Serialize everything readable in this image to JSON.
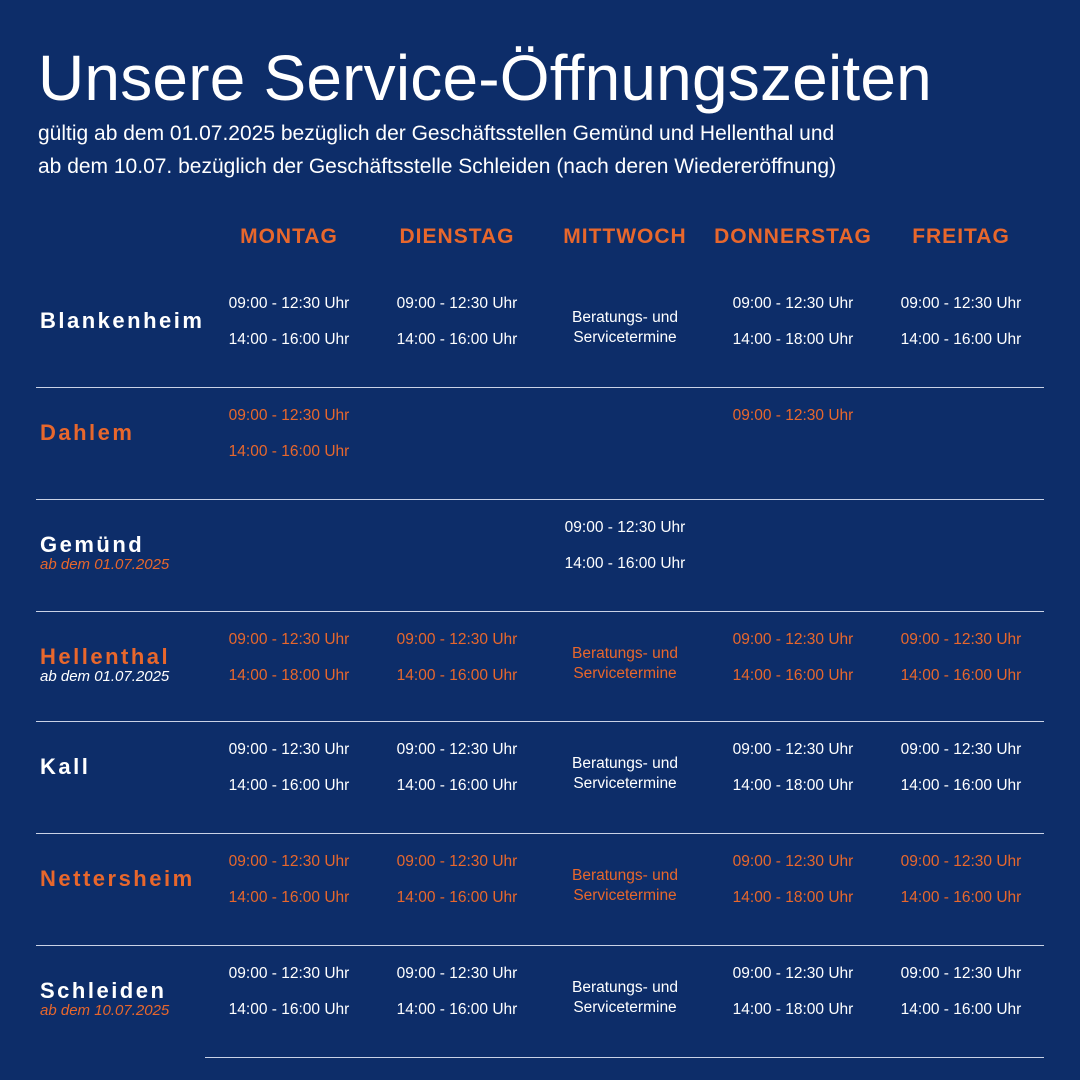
{
  "header": {
    "title": "Unsere Service-Öffnungszeiten",
    "subtitle_line1": "gültig ab dem 01.07.2025 bezüglich der Geschäftsstellen Gemünd und Hellenthal und",
    "subtitle_line2": "ab dem 10.07. bezüglich der Geschäftsstelle Schleiden (nach deren Wiedereröffnung)"
  },
  "days": [
    "MONTAG",
    "DIENSTAG",
    "MITTWOCH",
    "DONNERSTAG",
    "FREITAG"
  ],
  "colors": {
    "background": "#0d2d69",
    "accent": "#e8672c",
    "text": "#ffffff"
  },
  "branches": [
    {
      "name": "Blankenheim",
      "note": "",
      "color": "white",
      "cells": [
        {
          "times": [
            "09:00 - 12:30 Uhr",
            "14:00 - 16:00 Uhr"
          ]
        },
        {
          "times": [
            "09:00 - 12:30 Uhr",
            "14:00 - 16:00 Uhr"
          ]
        },
        {
          "note": [
            "Beratungs- und",
            "Servicetermine"
          ]
        },
        {
          "times": [
            "09:00 - 12:30 Uhr",
            "14:00 - 18:00 Uhr"
          ]
        },
        {
          "times": [
            "09:00 - 12:30 Uhr",
            "14:00 - 16:00 Uhr"
          ]
        }
      ]
    },
    {
      "name": "Dahlem",
      "note": "",
      "color": "orange",
      "cells": [
        {
          "times": [
            "09:00 - 12:30 Uhr",
            "14:00 - 16:00 Uhr"
          ]
        },
        {},
        {},
        {
          "times": [
            "09:00 - 12:30 Uhr"
          ]
        },
        {}
      ]
    },
    {
      "name": "Gemünd",
      "note": "ab dem 01.07.2025",
      "color": "white",
      "cells": [
        {},
        {},
        {
          "times": [
            "09:00 - 12:30 Uhr",
            "14:00 - 16:00 Uhr"
          ]
        },
        {},
        {}
      ]
    },
    {
      "name": "Hellenthal",
      "note": "ab dem 01.07.2025",
      "color": "orange",
      "cells": [
        {
          "times": [
            "09:00 - 12:30 Uhr",
            "14:00 - 18:00 Uhr"
          ]
        },
        {
          "times": [
            "09:00 - 12:30 Uhr",
            "14:00 - 16:00 Uhr"
          ]
        },
        {
          "note": [
            "Beratungs- und",
            "Servicetermine"
          ]
        },
        {
          "times": [
            "09:00 - 12:30 Uhr",
            "14:00 - 16:00 Uhr"
          ]
        },
        {
          "times": [
            "09:00 - 12:30 Uhr",
            "14:00 - 16:00 Uhr"
          ]
        }
      ]
    },
    {
      "name": "Kall",
      "note": "",
      "color": "white",
      "cells": [
        {
          "times": [
            "09:00 - 12:30 Uhr",
            "14:00 - 16:00 Uhr"
          ]
        },
        {
          "times": [
            "09:00 - 12:30 Uhr",
            "14:00 - 16:00 Uhr"
          ]
        },
        {
          "note": [
            "Beratungs- und",
            "Servicetermine"
          ]
        },
        {
          "times": [
            "09:00 - 12:30 Uhr",
            "14:00 - 18:00 Uhr"
          ]
        },
        {
          "times": [
            "09:00 - 12:30 Uhr",
            "14:00 - 16:00 Uhr"
          ]
        }
      ]
    },
    {
      "name": "Nettersheim",
      "note": "",
      "color": "orange",
      "cells": [
        {
          "times": [
            "09:00 - 12:30 Uhr",
            "14:00 - 16:00 Uhr"
          ]
        },
        {
          "times": [
            "09:00 - 12:30 Uhr",
            "14:00 - 16:00 Uhr"
          ]
        },
        {
          "note": [
            "Beratungs- und",
            "Servicetermine"
          ]
        },
        {
          "times": [
            "09:00 - 12:30 Uhr",
            "14:00 - 18:00 Uhr"
          ]
        },
        {
          "times": [
            "09:00 - 12:30 Uhr",
            "14:00 - 16:00 Uhr"
          ]
        }
      ]
    },
    {
      "name": "Schleiden",
      "note": "ab dem 10.07.2025",
      "color": "white",
      "cells": [
        {
          "times": [
            "09:00 - 12:30 Uhr",
            "14:00 - 16:00 Uhr"
          ]
        },
        {
          "times": [
            "09:00 - 12:30 Uhr",
            "14:00 - 16:00 Uhr"
          ]
        },
        {
          "note": [
            "Beratungs- und",
            "Servicetermine"
          ]
        },
        {
          "times": [
            "09:00 - 12:30 Uhr",
            "14:00 - 18:00 Uhr"
          ]
        },
        {
          "times": [
            "09:00 - 12:30 Uhr",
            "14:00 - 16:00 Uhr"
          ]
        }
      ]
    }
  ]
}
